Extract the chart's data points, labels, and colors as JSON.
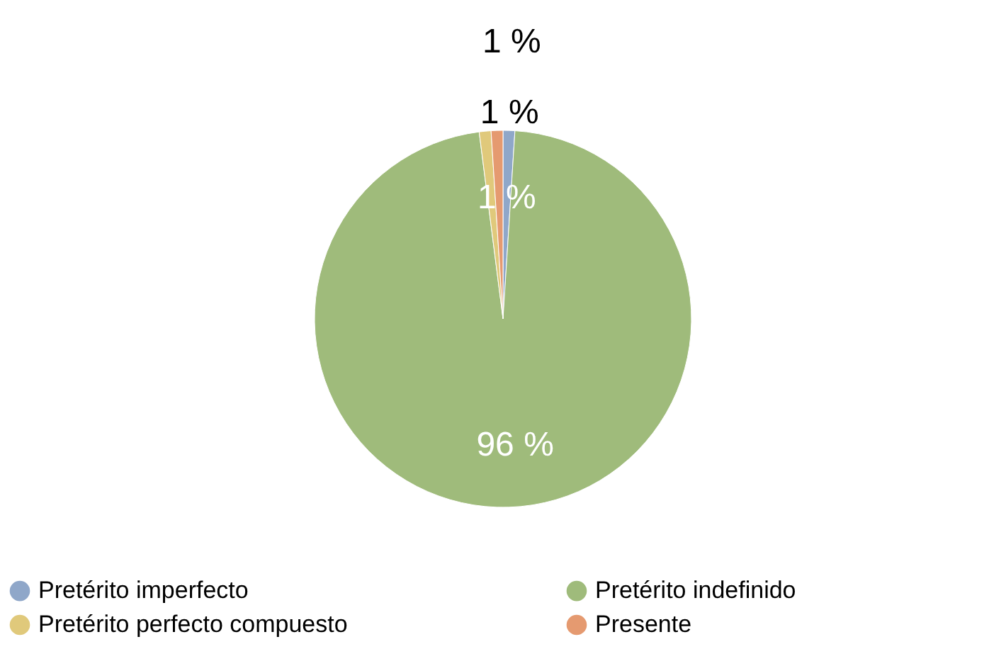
{
  "chart_data": {
    "type": "pie",
    "categories": [
      "Pretérito imperfecto",
      "Pretérito indefinido",
      "Pretérito perfecto compuesto",
      "Presente"
    ],
    "values": [
      1,
      96,
      1,
      1
    ],
    "colors": [
      "#8fa7c9",
      "#9fbb7b",
      "#e0c97b",
      "#e59a70"
    ],
    "value_labels": [
      "1 %",
      "96 %",
      "1 %",
      "1 %"
    ],
    "legend": "bottom"
  }
}
